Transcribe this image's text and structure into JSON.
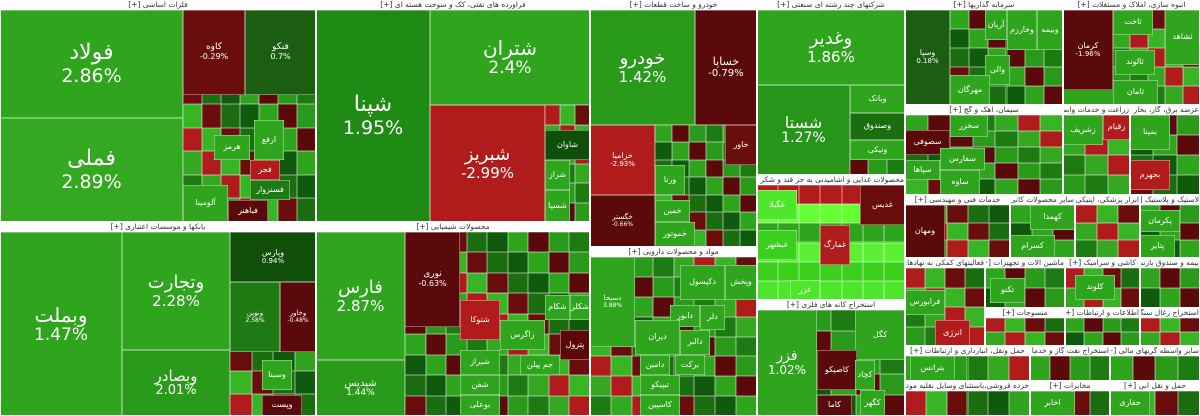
{
  "sectors": [
    {
      "title": "فلزات اساسی [+]",
      "tiles": [
        {
          "label": "فولاد",
          "change": "2.86%"
        },
        {
          "label": "فملی",
          "change": "2.89%"
        },
        {
          "label": "کاوه",
          "change": "-0.29%"
        },
        {
          "label": "فنکو",
          "change": "0.7%"
        },
        {
          "label": "هرمز"
        },
        {
          "label": "ارفع"
        },
        {
          "label": "فجر"
        },
        {
          "label": "فسنزوار"
        },
        {
          "label": "آلومینا"
        },
        {
          "label": "فباهنر"
        }
      ]
    },
    {
      "title": "فراورده های نفتی، کک و سوخت هسته ای [+]",
      "tiles": [
        {
          "label": "شپنا",
          "change": "1.95%"
        },
        {
          "label": "شتران",
          "change": "2.4%"
        },
        {
          "label": "شبریز",
          "change": "-2.99%"
        },
        {
          "label": "شاوان"
        },
        {
          "label": "شراز"
        },
        {
          "label": "شسپا"
        }
      ]
    },
    {
      "title": "خودرو و ساخت قطعات [+]",
      "tiles": [
        {
          "label": "خودرو",
          "change": "1.42%"
        },
        {
          "label": "خساپا",
          "change": "-0.79%"
        },
        {
          "label": "خزامیا",
          "change": "-2.93%"
        },
        {
          "label": "خگستر",
          "change": "-0.66%"
        },
        {
          "label": "ورنا"
        },
        {
          "label": "خاور"
        },
        {
          "label": "خمین"
        },
        {
          "label": "خموتور"
        }
      ]
    },
    {
      "title": "شرکتهای چند رشته ای صنعتی [+]",
      "tiles": [
        {
          "label": "وغدیر",
          "change": "1.86%"
        },
        {
          "label": "شستا",
          "change": "1.27%"
        },
        {
          "label": "وبانک"
        },
        {
          "label": "وصندوق"
        },
        {
          "label": "ونیکی"
        }
      ]
    },
    {
      "title": "سرمایه گذاریها [+]",
      "tiles": [
        {
          "label": "وسپا",
          "change": "0.18%"
        },
        {
          "label": "آریان"
        },
        {
          "label": "وخارزم"
        },
        {
          "label": "وبیمه"
        },
        {
          "label": "والی"
        },
        {
          "label": "مهرگان"
        }
      ]
    },
    {
      "title": "انبوه سازی، املاک و مستغلات [+]",
      "tiles": [
        {
          "label": "کرمان",
          "change": "-1.96%"
        },
        {
          "label": "ثشاهد"
        },
        {
          "label": "ثاخت"
        },
        {
          "label": "ثالوند"
        },
        {
          "label": "ثامان"
        }
      ]
    },
    {
      "title": "سیمان، آهک و گچ [+]",
      "tiles": [
        {
          "label": "سخزر"
        },
        {
          "label": "سصوفی"
        },
        {
          "label": "سفارس"
        },
        {
          "label": "سپاها"
        },
        {
          "label": "ساوه"
        }
      ]
    },
    {
      "title": "زراعت و خدمات وابسته [+]",
      "tiles": [
        {
          "label": "زشریف"
        },
        {
          "label": "زقیام"
        }
      ]
    },
    {
      "title": "عرضه برق، گاز، بخار و آب گرم [+]",
      "tiles": [
        {
          "label": "بمپنا"
        },
        {
          "label": "بجهرم"
        }
      ]
    },
    {
      "title": "خدمات فنی و مهندسی [+]",
      "tiles": [
        {
          "label": "ومهان"
        }
      ]
    },
    {
      "title": "سایر محصولات کانی غیرفلزی [+]",
      "tiles": [
        {
          "label": "کهمدا"
        },
        {
          "label": "کسرام"
        }
      ]
    },
    {
      "title": "ابزار پزشکی، اپتیکی و اندازه گیری [+]",
      "tiles": []
    },
    {
      "title": "لاستیک و پلاستیک [+]",
      "tiles": [
        {
          "label": "پکرمان"
        },
        {
          "label": "پتایر"
        }
      ]
    },
    {
      "title": "فعالیتهای کمکی به نهادهای مالی واسط [+]",
      "tiles": [
        {
          "label": "فرابورس"
        },
        {
          "label": "انرژی"
        }
      ]
    },
    {
      "title": "ماشین آلات و تجهیزات [+]",
      "tiles": [
        {
          "label": "تکنو"
        }
      ]
    },
    {
      "title": "کاشی و سرامیک [+]",
      "tiles": [
        {
          "label": "کلوند"
        }
      ]
    },
    {
      "title": "بیمه و صندوق بازنشستگی [+]",
      "tiles": []
    },
    {
      "title": "منسوجات [+]",
      "tiles": []
    },
    {
      "title": "اطلاعات و ارتباطات [+]",
      "tiles": []
    },
    {
      "title": "استخراج زغال سنگ [+]",
      "tiles": []
    },
    {
      "title": "حمل ونقل، انبارداری و ارتباطات [+]",
      "tiles": [
        {
          "label": "بترانس"
        }
      ]
    },
    {
      "title": "خرده فروشی،باستثنای وسایل نقلیه موتوری [+]",
      "tiles": []
    },
    {
      "title": "استخراج نفت گاز و خدمات جنبی جز اکتشاف [+]",
      "tiles": []
    },
    {
      "title": "مخابرات [+]",
      "tiles": [
        {
          "label": "اخابر"
        }
      ]
    },
    {
      "title": "سایر واسطه گریهای مالی [+]",
      "tiles": []
    },
    {
      "title": "حمل و نقل آبی [+]",
      "tiles": [
        {
          "label": "حفاری"
        }
      ]
    },
    {
      "title": "بانکها و موسسات اعتباری [+]",
      "tiles": [
        {
          "label": "وبملت",
          "change": "1.47%"
        },
        {
          "label": "وتجارت",
          "change": "2.28%"
        },
        {
          "label": "وبصادر",
          "change": "2.01%"
        },
        {
          "label": "وپارس",
          "change": "0.94%"
        },
        {
          "label": "ونوین",
          "change": "2.58%"
        },
        {
          "label": "وخاور",
          "change": "-0.48%"
        },
        {
          "label": "وسینا"
        },
        {
          "label": "وپست"
        }
      ]
    },
    {
      "title": "محصولات شیمیایی [+]",
      "tiles": [
        {
          "label": "فارس",
          "change": "2.87%"
        },
        {
          "label": "شپدیس",
          "change": "1.44%"
        },
        {
          "label": "نوری",
          "change": "-0.63%"
        },
        {
          "label": "شتوکا"
        },
        {
          "label": "زاگرس"
        },
        {
          "label": "شکام"
        },
        {
          "label": "شکلر"
        },
        {
          "label": "شیراز"
        },
        {
          "label": "جم پیلن"
        },
        {
          "label": "پترول"
        },
        {
          "label": "شفن"
        },
        {
          "label": "بوعلی"
        }
      ]
    },
    {
      "title": "مواد و محصولات دارویی [+]",
      "tiles": [
        {
          "label": "دسبحا",
          "change": "3.88%"
        },
        {
          "label": "دکپسول"
        },
        {
          "label": "وپخش"
        },
        {
          "label": "دابور"
        },
        {
          "label": "دلر"
        },
        {
          "label": "دیران"
        },
        {
          "label": "دالبر"
        },
        {
          "label": "دامین"
        },
        {
          "label": "برکت"
        },
        {
          "label": "تیپیکو"
        },
        {
          "label": "کاسپین"
        }
      ]
    },
    {
      "title": "محصولات غذایی و آشامیدنی به جز قند و شکر [+]",
      "tiles": [
        {
          "label": "غگیلا"
        },
        {
          "label": "غبشهر"
        },
        {
          "label": "غمارگ"
        },
        {
          "label": "غزر"
        },
        {
          "label": "غدیس"
        }
      ]
    },
    {
      "title": "استخراج کانه های فلزی [+]",
      "tiles": [
        {
          "label": "فزر",
          "change": "1.02%"
        },
        {
          "label": "کگل"
        },
        {
          "label": "کاصیکو"
        },
        {
          "label": "کچاد"
        },
        {
          "label": "کگهر"
        },
        {
          "label": "کاما"
        }
      ]
    }
  ]
}
